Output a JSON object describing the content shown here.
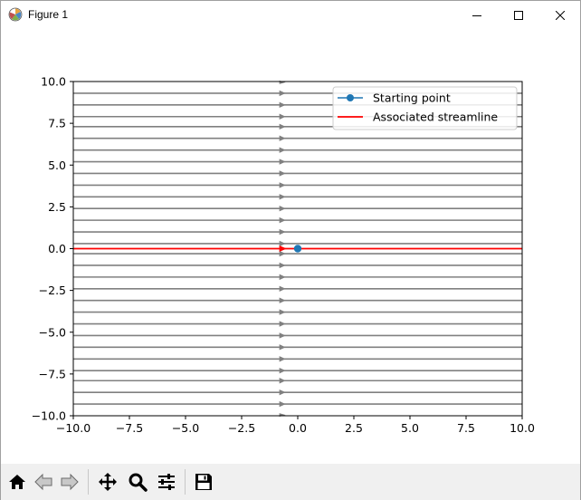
{
  "window": {
    "title": "Figure 1"
  },
  "toolbar": {
    "buttons": [
      {
        "name": "home-icon"
      },
      {
        "name": "back-arrow-icon"
      },
      {
        "name": "forward-arrow-icon"
      },
      {
        "name": "pan-move-icon"
      },
      {
        "name": "zoom-magnifier-icon"
      },
      {
        "name": "configure-subplots-icon"
      },
      {
        "name": "save-floppy-icon"
      }
    ]
  },
  "chart_data": {
    "type": "line",
    "title": "",
    "xlabel": "",
    "ylabel": "",
    "xlim": [
      -10,
      10
    ],
    "ylim": [
      -10,
      10
    ],
    "xticks": [
      -10,
      -7.5,
      -5,
      -2.5,
      0,
      2.5,
      5,
      7.5,
      10
    ],
    "yticks": [
      -10,
      -7.5,
      -5,
      -2.5,
      0,
      2.5,
      5,
      7.5,
      10
    ],
    "xtick_labels": [
      "−10.0",
      "−7.5",
      "−5.0",
      "−2.5",
      "0.0",
      "2.5",
      "5.0",
      "7.5",
      "10.0"
    ],
    "ytick_labels": [
      "−10.0",
      "−7.5",
      "−5.0",
      "−2.5",
      "0.0",
      "2.5",
      "5.0",
      "7.5",
      "10.0"
    ],
    "grid": false,
    "legend_position": "upper right",
    "streamlines": {
      "color": "#808080",
      "y": [
        -9.3,
        -8.6,
        -7.9,
        -7.3,
        -6.6,
        -5.9,
        -5.2,
        -4.5,
        -3.8,
        -3.1,
        -2.4,
        -1.7,
        -1.0,
        -0.3,
        0.3,
        1.0,
        1.7,
        2.4,
        3.1,
        3.8,
        4.5,
        5.2,
        5.9,
        6.6,
        7.3,
        7.9,
        8.6,
        9.3
      ],
      "arrow_x": -0.7,
      "direction": "+x"
    },
    "starting_point": {
      "x": 0,
      "y": 0
    },
    "series": [
      {
        "name": "Starting point",
        "color": "#1f77b4",
        "marker": "o",
        "x": [
          0
        ],
        "y": [
          0
        ]
      },
      {
        "name": "Associated streamline",
        "color": "#ff0000",
        "x": [
          -10,
          10
        ],
        "y": [
          0,
          0
        ]
      }
    ]
  }
}
